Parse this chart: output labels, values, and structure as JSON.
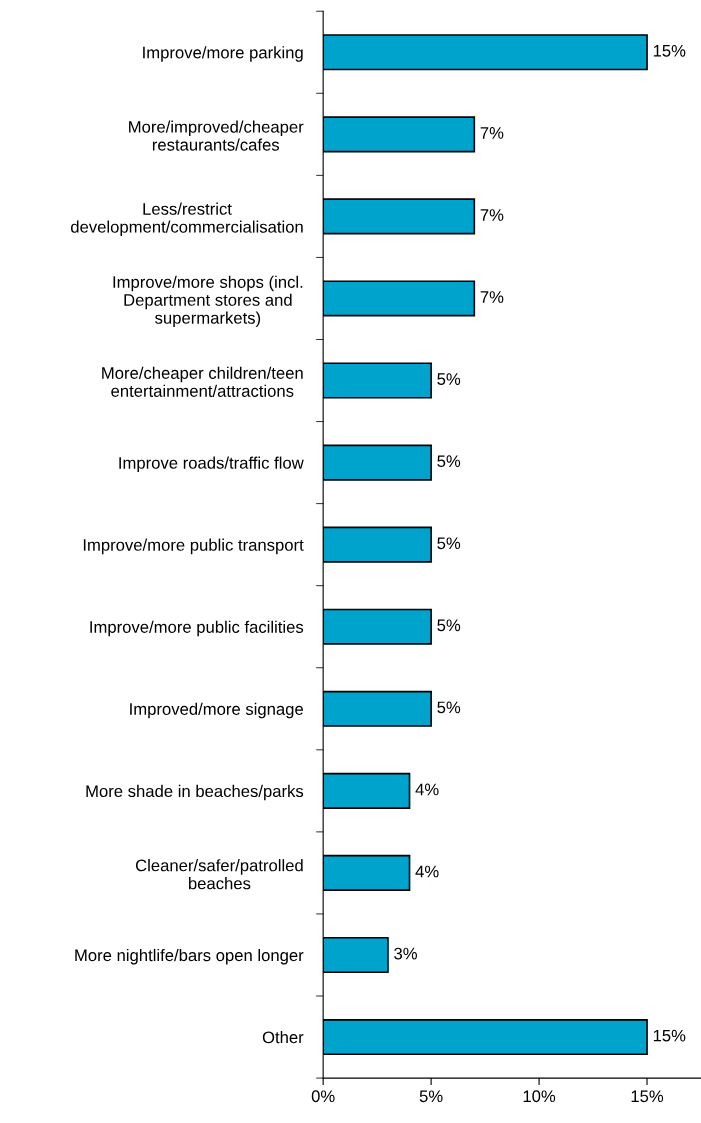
{
  "chart_data": {
    "type": "bar",
    "orientation": "horizontal",
    "categories": [
      "Improve/more parking",
      "More/improved/cheaper\nrestaurants/cafes",
      "Less/restrict\ndevelopment/commercialisation",
      "Improve/more shops (incl.\nDepartment stores and\nsupermarkets)",
      "More/cheaper children/teen\nentertainment/attractions",
      "Improve roads/traffic flow",
      "Improve/more public transport",
      "Improve/more public facilities",
      "Improved/more signage",
      "More shade in beaches/parks",
      "Cleaner/safer/patrolled\nbeaches",
      "More nightlife/bars open longer",
      "Other"
    ],
    "values": [
      15,
      7,
      7,
      7,
      5,
      5,
      5,
      5,
      5,
      4,
      4,
      3,
      15
    ],
    "value_labels": [
      "15%",
      "7%",
      "7%",
      "7%",
      "5%",
      "5%",
      "5%",
      "5%",
      "5%",
      "4%",
      "4%",
      "3%",
      "15%"
    ],
    "color": "#00a3cc",
    "xlim": [
      0,
      17.5
    ],
    "xticks": [
      {
        "value": 0,
        "label": "0%"
      },
      {
        "value": 5,
        "label": "5%"
      },
      {
        "value": 10,
        "label": "10%"
      },
      {
        "value": 15,
        "label": "15%"
      }
    ],
    "grid": false,
    "legend": false
  }
}
